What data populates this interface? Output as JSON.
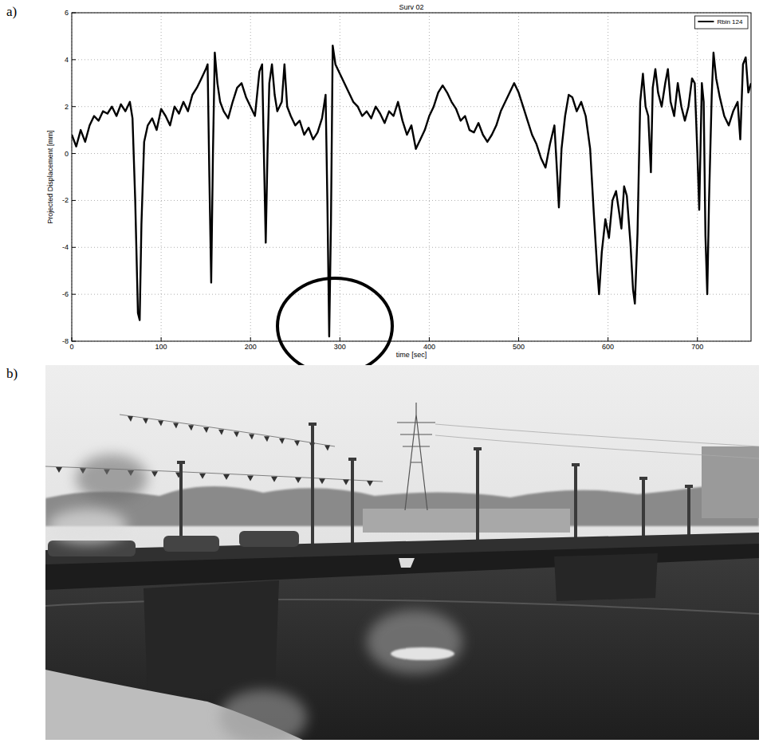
{
  "chart_data": {
    "type": "line",
    "title": "Surv 02",
    "panel_label": "a)",
    "x_label": "time [sec]",
    "y_label": "Projected Displacement [mm]",
    "xlim": [
      0,
      760
    ],
    "ylim": [
      -8,
      6
    ],
    "xticks": [
      0,
      100,
      200,
      300,
      400,
      500,
      600,
      700
    ],
    "yticks": [
      -8,
      -6,
      -4,
      -2,
      0,
      2,
      4,
      6
    ],
    "grid": true,
    "legend": "upper right",
    "x": [
      0,
      5,
      10,
      15,
      20,
      25,
      30,
      35,
      40,
      45,
      50,
      55,
      60,
      65,
      68,
      71,
      74,
      76,
      78,
      81,
      85,
      90,
      95,
      100,
      105,
      110,
      115,
      120,
      125,
      130,
      135,
      140,
      145,
      150,
      152,
      154,
      156,
      158,
      160,
      163,
      166,
      170,
      175,
      180,
      185,
      190,
      195,
      200,
      205,
      210,
      213,
      215,
      217,
      219,
      221,
      224,
      227,
      230,
      235,
      238,
      241,
      245,
      250,
      255,
      260,
      265,
      270,
      275,
      280,
      284,
      286,
      288,
      290,
      292,
      295,
      300,
      305,
      310,
      315,
      320,
      325,
      330,
      335,
      340,
      345,
      350,
      355,
      360,
      365,
      370,
      375,
      380,
      385,
      390,
      395,
      400,
      405,
      410,
      415,
      420,
      425,
      430,
      435,
      440,
      445,
      450,
      455,
      460,
      465,
      470,
      475,
      480,
      485,
      490,
      495,
      500,
      505,
      510,
      515,
      520,
      525,
      530,
      535,
      540,
      543,
      545,
      548,
      552,
      556,
      560,
      565,
      570,
      575,
      580,
      584,
      588,
      590,
      593,
      597,
      601,
      605,
      609,
      612,
      615,
      618,
      621,
      625,
      628,
      630,
      633,
      636,
      639,
      642,
      645,
      648,
      650,
      653,
      656,
      660,
      664,
      667,
      670,
      674,
      678,
      682,
      686,
      690,
      694,
      697,
      700,
      702,
      705,
      707,
      709,
      711,
      713,
      716,
      718,
      721,
      725,
      730,
      735,
      740,
      745,
      748,
      751,
      754,
      757,
      760
    ],
    "series": [
      {
        "name": "Rbin 124",
        "color": "#000000",
        "line_style": "solid",
        "values": [
          0.8,
          0.3,
          1.0,
          0.5,
          1.2,
          1.6,
          1.4,
          1.8,
          1.7,
          2.0,
          1.6,
          2.1,
          1.8,
          2.2,
          1.5,
          -2,
          -6.8,
          -7.1,
          -3,
          0.5,
          1.2,
          1.5,
          1.0,
          1.9,
          1.6,
          1.2,
          2.0,
          1.7,
          2.2,
          1.8,
          2.5,
          2.8,
          3.2,
          3.6,
          3.8,
          -1,
          -5.5,
          0,
          4.3,
          3.0,
          2.2,
          1.8,
          1.5,
          2.2,
          2.8,
          3.0,
          2.4,
          2.0,
          1.6,
          3.5,
          3.8,
          0,
          -3.8,
          0,
          3.0,
          3.8,
          2.5,
          1.8,
          2.2,
          3.8,
          2.0,
          1.6,
          1.2,
          1.4,
          0.8,
          1.1,
          0.6,
          0.9,
          1.5,
          2.5,
          -2,
          -7.8,
          -3,
          4.6,
          3.8,
          3.4,
          3.0,
          2.6,
          2.2,
          2.0,
          1.6,
          1.8,
          1.5,
          2.0,
          1.7,
          1.3,
          1.8,
          1.6,
          2.2,
          1.4,
          0.8,
          1.2,
          0.2,
          0.6,
          1.0,
          1.6,
          2.0,
          2.6,
          2.9,
          2.6,
          2.2,
          1.9,
          1.4,
          1.6,
          1.0,
          0.9,
          1.3,
          0.8,
          0.5,
          0.8,
          1.2,
          1.8,
          2.2,
          2.6,
          3.0,
          2.6,
          2.0,
          1.4,
          0.8,
          0.4,
          -0.2,
          -0.6,
          0.4,
          1.2,
          -0.8,
          -2.3,
          0.2,
          1.6,
          2.5,
          2.4,
          1.8,
          2.2,
          1.6,
          0.2,
          -2.5,
          -5.0,
          -6.0,
          -4.2,
          -2.8,
          -3.6,
          -2.0,
          -1.6,
          -2.4,
          -3.2,
          -1.4,
          -1.8,
          -3.8,
          -5.8,
          -6.4,
          -3.4,
          2.2,
          3.4,
          2.0,
          1.6,
          -0.8,
          2.8,
          3.6,
          2.6,
          2.0,
          3.0,
          3.6,
          2.2,
          1.6,
          3.0,
          2.0,
          1.4,
          2.0,
          3.2,
          3.0,
          0,
          -2.4,
          3.0,
          2.2,
          -3.5,
          -6.0,
          -2,
          2.5,
          4.3,
          3.2,
          2.4,
          1.6,
          1.2,
          1.8,
          2.2,
          0.6,
          3.8,
          4.1,
          2.6,
          3.0
        ]
      }
    ]
  },
  "photo": {
    "panel_label": "b)"
  }
}
